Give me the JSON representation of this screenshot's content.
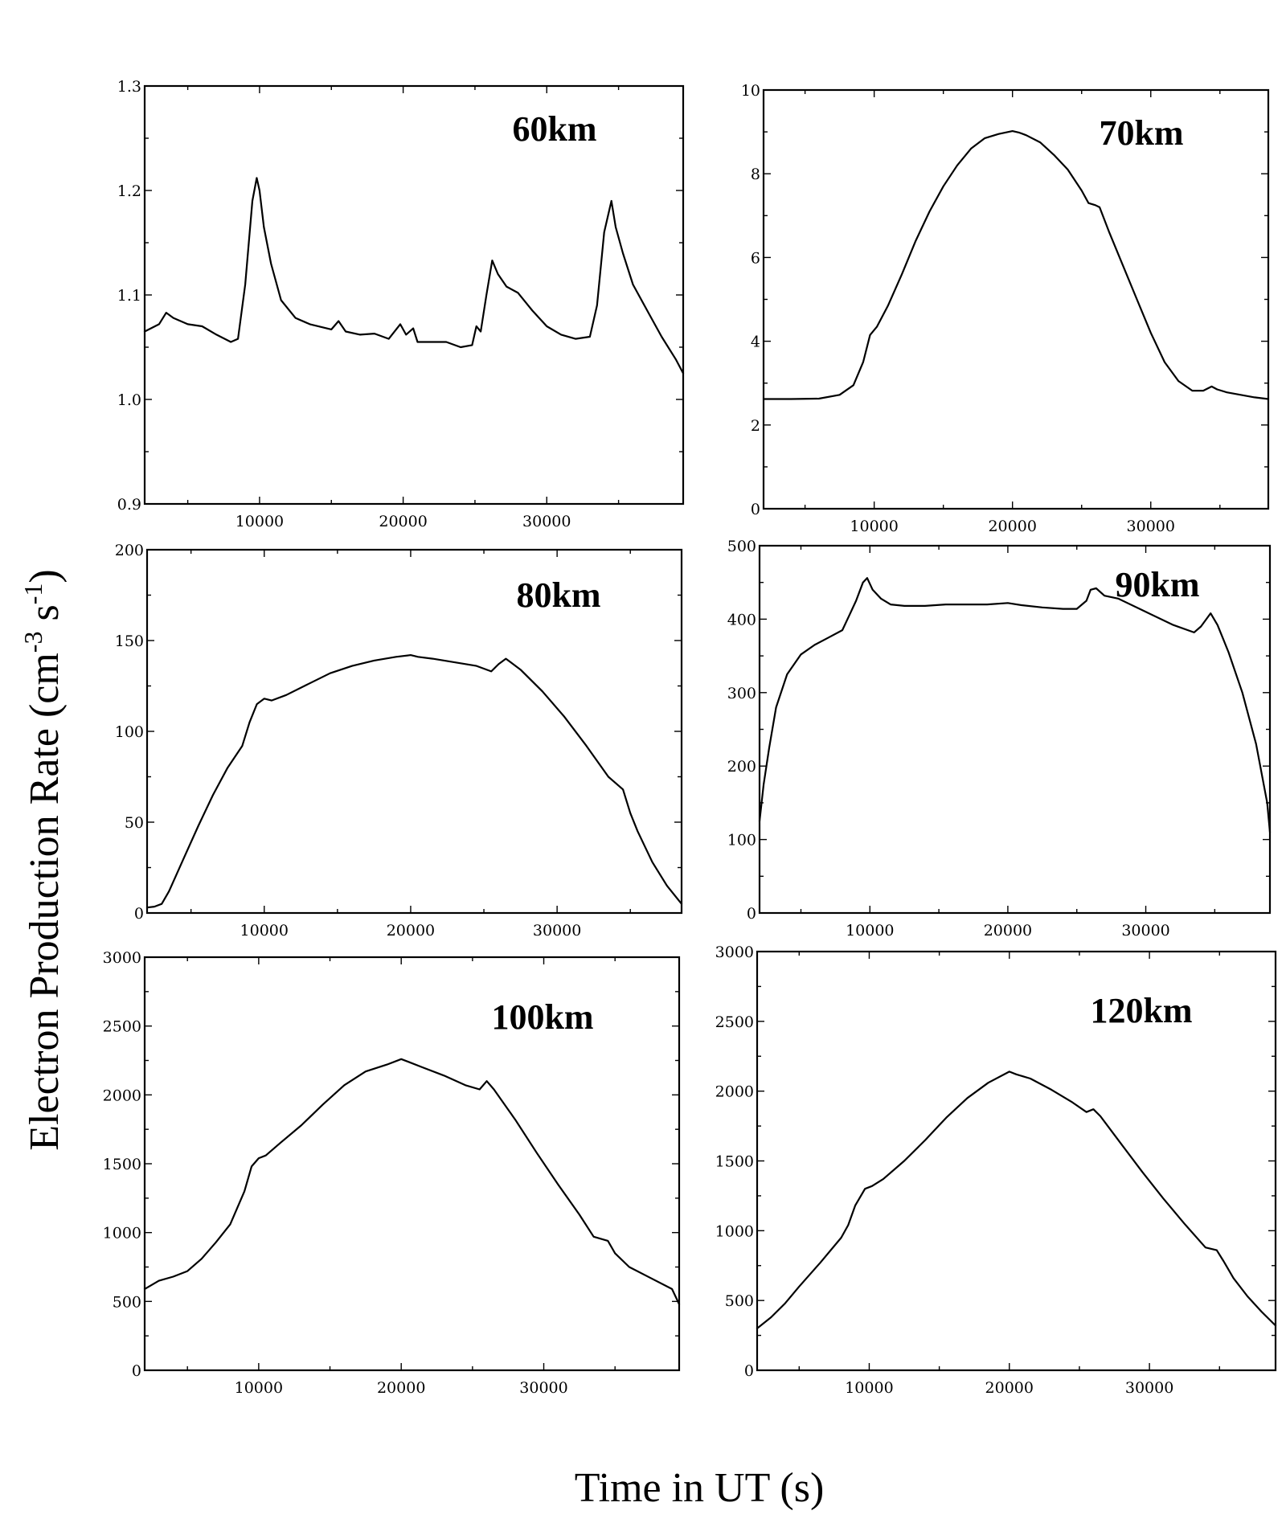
{
  "figure": {
    "ylabel_main": "Electron Production Rate (cm",
    "ylabel_sup1": "-3",
    "ylabel_mid": " s",
    "ylabel_sup2": "-1",
    "ylabel_end": ")",
    "xlabel": "Time in UT (s)"
  },
  "chart_data": [
    {
      "type": "line",
      "title": "60km",
      "xlabel": "Time in UT (s)",
      "ylabel": "Electron Production Rate (cm-3 s-1)",
      "xlim": [
        2000,
        39500
      ],
      "ylim": [
        0.9,
        1.3
      ],
      "xticks": [
        10000,
        20000,
        30000
      ],
      "xtick_labels": [
        "10000",
        "20000",
        "30000"
      ],
      "yticks": [
        0.9,
        1.0,
        1.1,
        1.2,
        1.3
      ],
      "ytick_labels": [
        "0.9",
        "1.0",
        "1.1",
        "1.2",
        "1.3"
      ],
      "series": [
        {
          "name": "60km",
          "x": [
            2000,
            3000,
            3500,
            4000,
            5000,
            6000,
            7000,
            8000,
            8500,
            9000,
            9500,
            9800,
            10000,
            10300,
            10800,
            11500,
            12500,
            13500,
            15000,
            15500,
            16000,
            17000,
            18000,
            19000,
            19800,
            20200,
            20700,
            21000,
            22000,
            23000,
            24000,
            24800,
            25100,
            25400,
            25800,
            26200,
            26600,
            27200,
            28000,
            29000,
            30000,
            31000,
            32000,
            33000,
            33500,
            34000,
            34500,
            34800,
            35300,
            36000,
            37000,
            38000,
            39000,
            39500
          ],
          "y": [
            1.065,
            1.072,
            1.083,
            1.078,
            1.072,
            1.07,
            1.062,
            1.055,
            1.058,
            1.11,
            1.19,
            1.212,
            1.2,
            1.165,
            1.13,
            1.095,
            1.078,
            1.072,
            1.067,
            1.075,
            1.065,
            1.062,
            1.063,
            1.058,
            1.072,
            1.062,
            1.068,
            1.055,
            1.055,
            1.055,
            1.05,
            1.052,
            1.07,
            1.065,
            1.1,
            1.133,
            1.12,
            1.108,
            1.102,
            1.085,
            1.07,
            1.062,
            1.058,
            1.06,
            1.09,
            1.16,
            1.19,
            1.165,
            1.14,
            1.11,
            1.085,
            1.06,
            1.038,
            1.025
          ]
        }
      ]
    },
    {
      "type": "line",
      "title": "70km",
      "xlabel": "Time in UT (s)",
      "ylabel": "Electron Production Rate (cm-3 s-1)",
      "xlim": [
        2000,
        38500
      ],
      "ylim": [
        0,
        10
      ],
      "xticks": [
        10000,
        20000,
        30000
      ],
      "xtick_labels": [
        "10000",
        "20000",
        "30000"
      ],
      "yticks": [
        0,
        2,
        4,
        6,
        8,
        10
      ],
      "ytick_labels": [
        "0",
        "2",
        "4",
        "6",
        "8",
        "10"
      ],
      "series": [
        {
          "name": "70km",
          "x": [
            2000,
            4000,
            6000,
            7500,
            8500,
            9200,
            9700,
            10200,
            11000,
            12000,
            13000,
            14000,
            15000,
            16000,
            17000,
            18000,
            19000,
            20000,
            20500,
            21000,
            22000,
            23000,
            24000,
            25000,
            25500,
            26000,
            26300,
            27000,
            28000,
            29000,
            30000,
            31000,
            32000,
            33000,
            33800,
            34400,
            34800,
            35500,
            36500,
            37500,
            38500
          ],
          "y": [
            2.62,
            2.62,
            2.63,
            2.72,
            2.95,
            3.5,
            4.15,
            4.35,
            4.85,
            5.6,
            6.4,
            7.1,
            7.7,
            8.2,
            8.6,
            8.85,
            8.95,
            9.02,
            8.98,
            8.92,
            8.75,
            8.45,
            8.1,
            7.6,
            7.3,
            7.25,
            7.2,
            6.6,
            5.8,
            5.0,
            4.2,
            3.5,
            3.05,
            2.82,
            2.82,
            2.92,
            2.85,
            2.78,
            2.72,
            2.66,
            2.62
          ]
        }
      ]
    },
    {
      "type": "line",
      "title": "80km",
      "xlabel": "Time in UT (s)",
      "ylabel": "Electron Production Rate (cm-3 s-1)",
      "xlim": [
        2000,
        38500
      ],
      "ylim": [
        0,
        200
      ],
      "xticks": [
        10000,
        20000,
        30000
      ],
      "xtick_labels": [
        "10000",
        "20000",
        "30000"
      ],
      "yticks": [
        0,
        50,
        100,
        150,
        200
      ],
      "ytick_labels": [
        "0",
        "50",
        "100",
        "150",
        "200"
      ],
      "series": [
        {
          "name": "80km",
          "x": [
            2000,
            2500,
            3000,
            3500,
            4500,
            5500,
            6500,
            7500,
            8500,
            9000,
            9500,
            10000,
            10500,
            11500,
            13000,
            14500,
            16000,
            17500,
            19000,
            20000,
            20500,
            21500,
            23000,
            24500,
            25500,
            26000,
            26500,
            27500,
            29000,
            30500,
            32000,
            33500,
            34500,
            35000,
            35500,
            36500,
            37500,
            38500
          ],
          "y": [
            3,
            3.5,
            5,
            12,
            30,
            48,
            65,
            80,
            92,
            105,
            115,
            118,
            117,
            120,
            126,
            132,
            136,
            139,
            141,
            142,
            141,
            140,
            138,
            136,
            133,
            137,
            140,
            134,
            122,
            108,
            92,
            75,
            68,
            55,
            45,
            28,
            15,
            5
          ]
        }
      ]
    },
    {
      "type": "line",
      "title": "90km",
      "xlabel": "Time in UT (s)",
      "ylabel": "Electron Production Rate (cm-3 s-1)",
      "xlim": [
        2000,
        39000
      ],
      "ylim": [
        0,
        500
      ],
      "xticks": [
        10000,
        20000,
        30000
      ],
      "xtick_labels": [
        "10000",
        "20000",
        "30000"
      ],
      "yticks": [
        0,
        100,
        200,
        300,
        400,
        500
      ],
      "ytick_labels": [
        "0",
        "100",
        "200",
        "300",
        "400",
        "500"
      ],
      "series": [
        {
          "name": "90km",
          "x": [
            2000,
            2300,
            2700,
            3200,
            4000,
            5000,
            6000,
            7000,
            8000,
            8500,
            9000,
            9500,
            9800,
            10200,
            10800,
            11500,
            12500,
            14000,
            15500,
            17000,
            18500,
            20000,
            21000,
            22500,
            24000,
            25000,
            25700,
            26000,
            26400,
            27000,
            28000,
            30000,
            32000,
            33500,
            34000,
            34700,
            35200,
            36000,
            37000,
            38000,
            38800,
            39000
          ],
          "y": [
            125,
            175,
            225,
            280,
            325,
            352,
            365,
            375,
            385,
            405,
            425,
            450,
            456,
            440,
            428,
            420,
            418,
            418,
            420,
            420,
            420,
            422,
            419,
            416,
            414,
            414,
            425,
            440,
            442,
            432,
            428,
            410,
            392,
            382,
            390,
            408,
            392,
            355,
            300,
            230,
            150,
            110
          ]
        }
      ]
    },
    {
      "type": "line",
      "title": "100km",
      "xlabel": "Time in UT (s)",
      "ylabel": "Electron Production Rate (cm-3 s-1)",
      "xlim": [
        2000,
        39500
      ],
      "ylim": [
        0,
        3000
      ],
      "xticks": [
        10000,
        20000,
        30000
      ],
      "xtick_labels": [
        "10000",
        "20000",
        "30000"
      ],
      "yticks": [
        0,
        500,
        1000,
        1500,
        2000,
        2500,
        3000
      ],
      "ytick_labels": [
        "0",
        "500",
        "1000",
        "1500",
        "2000",
        "2500",
        "3000"
      ],
      "series": [
        {
          "name": "100km",
          "x": [
            2000,
            3000,
            4000,
            5000,
            6000,
            7000,
            8000,
            9000,
            9500,
            10000,
            10500,
            11500,
            13000,
            14500,
            16000,
            17500,
            19000,
            20000,
            20500,
            21500,
            23000,
            24500,
            25500,
            26000,
            26500,
            28000,
            29500,
            31000,
            32500,
            33500,
            34500,
            35000,
            36000,
            37500,
            39000,
            39500
          ],
          "y": [
            590,
            650,
            680,
            720,
            810,
            930,
            1060,
            1300,
            1480,
            1540,
            1560,
            1650,
            1780,
            1930,
            2070,
            2170,
            2220,
            2260,
            2240,
            2200,
            2140,
            2070,
            2040,
            2100,
            2040,
            1820,
            1580,
            1350,
            1130,
            970,
            940,
            850,
            750,
            670,
            590,
            480
          ]
        }
      ]
    },
    {
      "type": "line",
      "title": "120km",
      "xlabel": "Time in UT (s)",
      "ylabel": "Electron Production Rate (cm-3 s-1)",
      "xlim": [
        2000,
        39000
      ],
      "ylim": [
        0,
        3000
      ],
      "xticks": [
        10000,
        20000,
        30000
      ],
      "xtick_labels": [
        "10000",
        "20000",
        "30000"
      ],
      "yticks": [
        0,
        500,
        1000,
        1500,
        2000,
        2500,
        3000
      ],
      "ytick_labels": [
        "0",
        "500",
        "1000",
        "1500",
        "2000",
        "2500",
        "3000"
      ],
      "series": [
        {
          "name": "120km",
          "x": [
            2000,
            3000,
            4000,
            5000,
            6500,
            8000,
            8500,
            9000,
            9700,
            10200,
            11000,
            12500,
            14000,
            15500,
            17000,
            18500,
            20000,
            20500,
            21500,
            23000,
            24500,
            25500,
            26000,
            26500,
            28000,
            29500,
            31000,
            32500,
            34000,
            34800,
            35300,
            36000,
            37000,
            38000,
            39000
          ],
          "y": [
            300,
            380,
            480,
            600,
            770,
            950,
            1040,
            1180,
            1300,
            1320,
            1370,
            1500,
            1650,
            1810,
            1950,
            2060,
            2140,
            2120,
            2090,
            2010,
            1920,
            1850,
            1870,
            1820,
            1620,
            1420,
            1230,
            1050,
            880,
            860,
            780,
            660,
            530,
            420,
            320
          ]
        }
      ]
    }
  ]
}
